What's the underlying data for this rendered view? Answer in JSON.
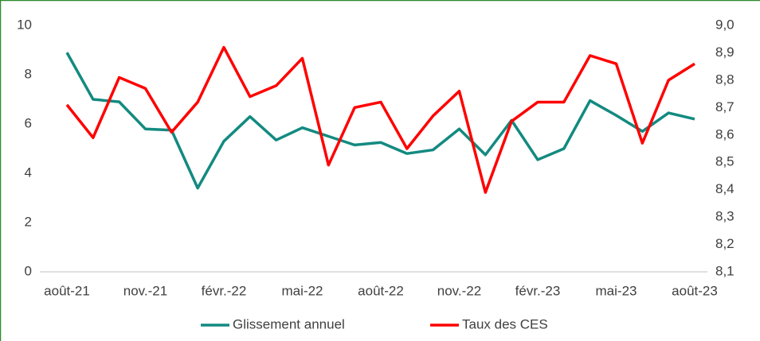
{
  "chart_data": {
    "type": "line",
    "categories": [
      "août-21",
      null,
      null,
      "nov.-21",
      null,
      null,
      "févr.-22",
      null,
      null,
      "mai-22",
      null,
      null,
      "août-22",
      null,
      null,
      "nov.-22",
      null,
      null,
      "févr.-23",
      null,
      null,
      "mai-23",
      null,
      null,
      "août-23"
    ],
    "series": [
      {
        "name": "Glissement annuel",
        "color": "#138a80",
        "values": [
          8.9,
          7.0,
          6.9,
          5.8,
          5.75,
          3.4,
          5.3,
          6.3,
          5.35,
          5.85,
          5.5,
          5.15,
          5.25,
          4.8,
          4.95,
          5.8,
          4.75,
          6.15,
          4.55,
          5.0,
          6.95,
          6.35,
          5.7,
          6.45,
          6.2
        ]
      },
      {
        "name": "Taux des CES",
        "color": "#ff0000",
        "axis": "y2",
        "values": [
          8.71,
          8.59,
          8.81,
          8.77,
          8.61,
          8.72,
          8.92,
          8.74,
          8.78,
          8.88,
          8.49,
          8.7,
          8.72,
          8.55,
          8.67,
          8.76,
          8.39,
          8.65,
          8.72,
          8.72,
          8.89,
          8.86,
          8.57,
          8.8,
          8.86
        ]
      }
    ],
    "ylim": [
      0,
      10
    ],
    "yticks": [
      0,
      2,
      4,
      6,
      8,
      10
    ],
    "y2lim": [
      8.1,
      9.0
    ],
    "y2ticks": [
      {
        "value": 8.1,
        "label": "8,1"
      },
      {
        "value": 8.2,
        "label": "8,2"
      },
      {
        "value": 8.3,
        "label": "8,3"
      },
      {
        "value": 8.4,
        "label": "8,4"
      },
      {
        "value": 8.5,
        "label": "8,5"
      },
      {
        "value": 8.6,
        "label": "8,6"
      },
      {
        "value": 8.7,
        "label": "8,7"
      },
      {
        "value": 8.8,
        "label": "8,8"
      },
      {
        "value": 8.9,
        "label": "8,9"
      },
      {
        "value": 9.0,
        "label": "9,0"
      }
    ],
    "grid": false,
    "legend": "bottom"
  }
}
